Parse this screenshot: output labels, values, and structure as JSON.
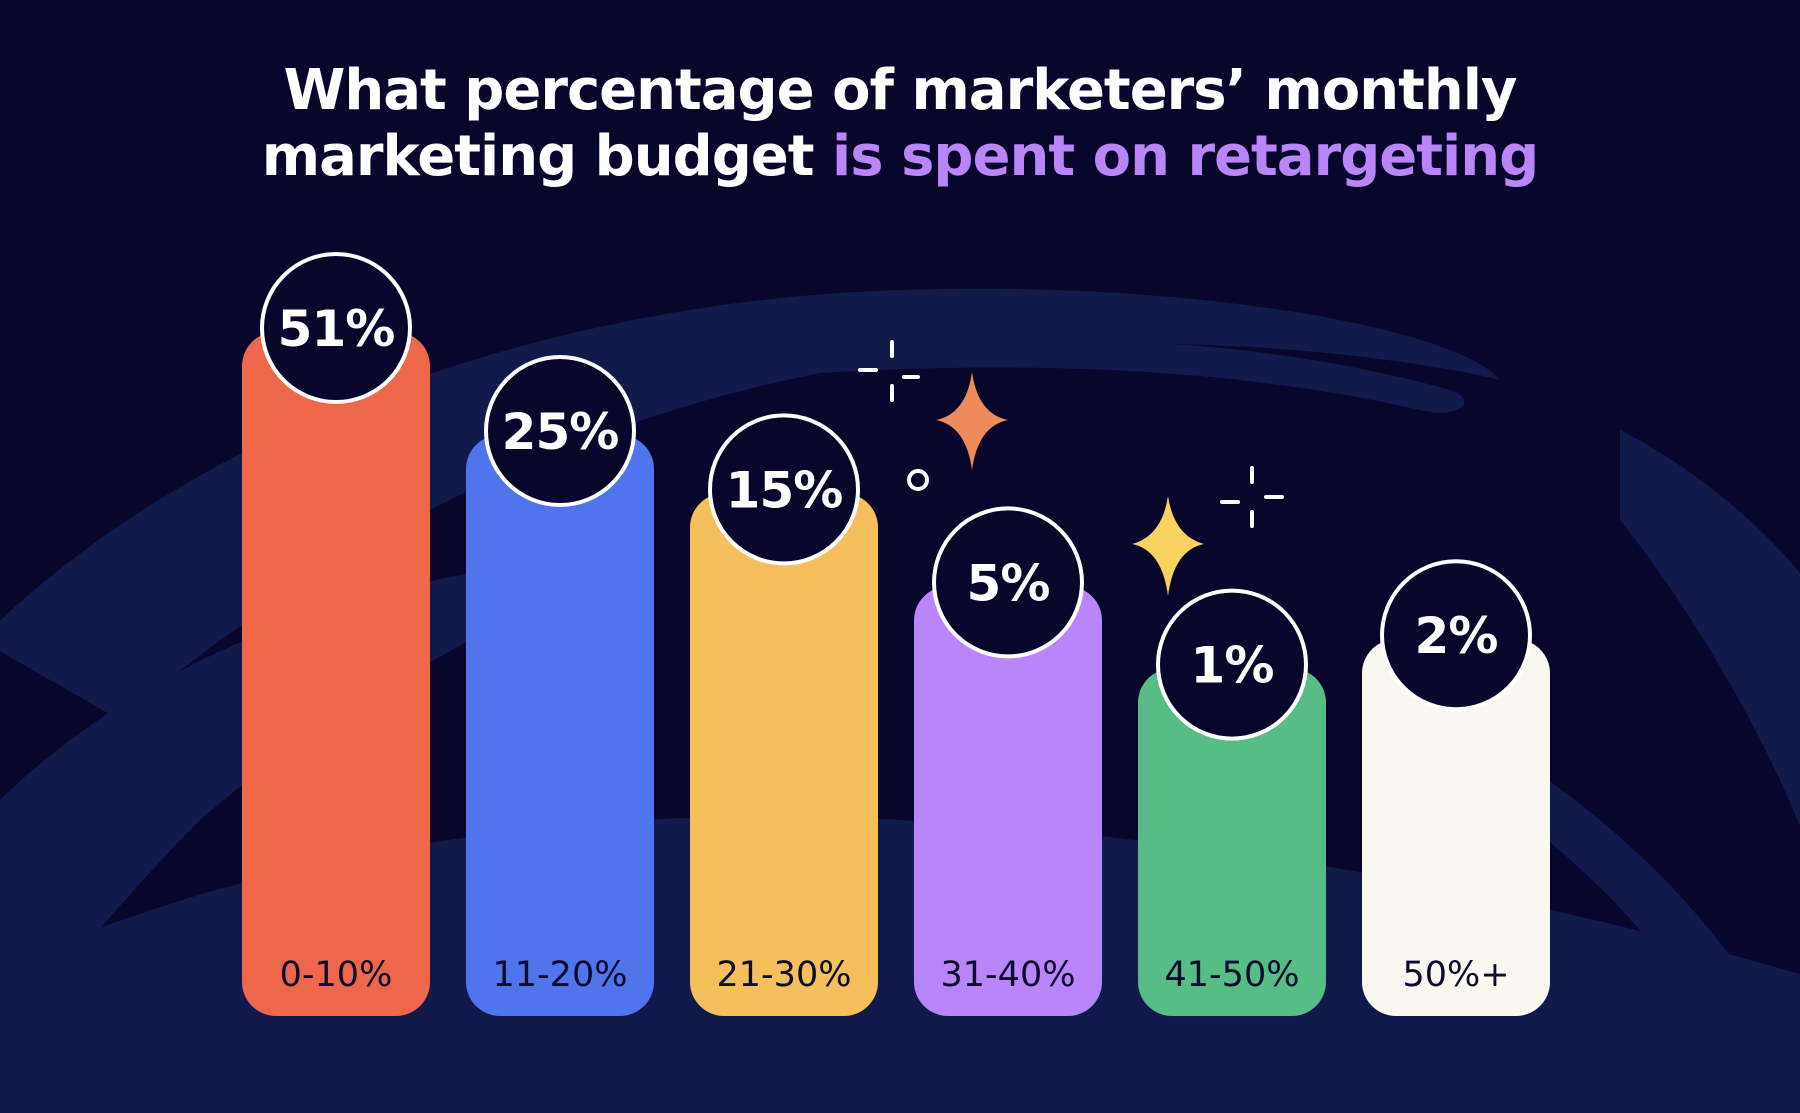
{
  "title": {
    "line1": "What percentage of marketers’ monthly",
    "line2_plain": "marketing budget ",
    "line2_accent": "is spent on retargeting"
  },
  "colors": {
    "background": "#08062a",
    "title": "#ffffff",
    "title_accent": "#b886f8",
    "bubble_fill": "#08062a",
    "bubble_stroke": "#ffffff"
  },
  "chart_data": {
    "type": "bar",
    "title": "What percentage of marketers’ monthly marketing budget is spent on retargeting",
    "categories": [
      "0-10%",
      "11-20%",
      "21-30%",
      "31-40%",
      "41-50%",
      "50%+"
    ],
    "values": [
      51,
      25,
      15,
      5,
      1,
      2
    ],
    "value_labels": [
      "51%",
      "25%",
      "15%",
      "5%",
      "1%",
      "2%"
    ],
    "bar_colors": [
      "#ef674a",
      "#4f74ec",
      "#f5c05c",
      "#b886f8",
      "#55bd85",
      "#fbf8f1"
    ],
    "xlabel": "",
    "ylabel": "",
    "grid": false,
    "legend": "none"
  }
}
